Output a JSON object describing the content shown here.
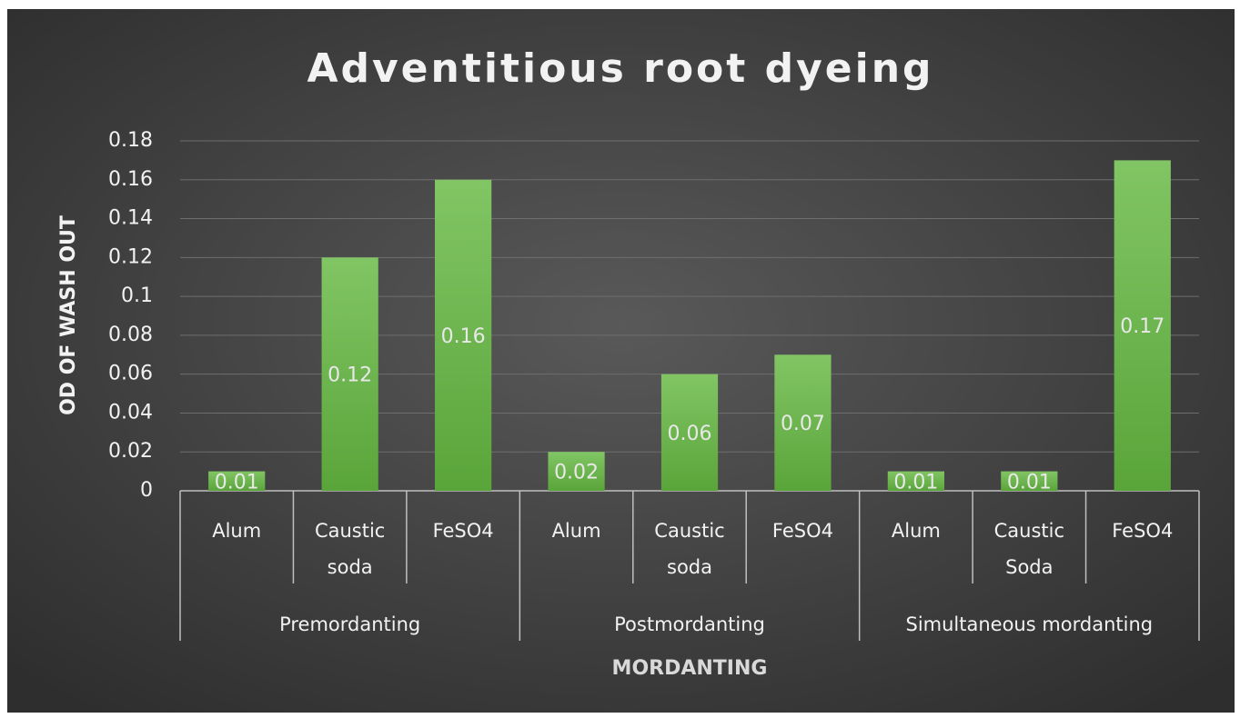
{
  "chart_data": {
    "type": "bar",
    "title": "Adventitious root dyeing",
    "x_label": "MORDANTING",
    "y_label": "OD OF WASH OUT",
    "color": "#6db84a",
    "grid": true,
    "ylim": [
      0,
      0.18
    ],
    "yticks": [
      0,
      0.02,
      0.04,
      0.06,
      0.08,
      0.1,
      0.12,
      0.14,
      0.16,
      0.18
    ],
    "groups": [
      {
        "name": "Premordanting",
        "categories": [
          "Alum",
          "Caustic soda",
          "FeSO4"
        ],
        "values": [
          0.01,
          0.12,
          0.16
        ]
      },
      {
        "name": "Postmordanting",
        "categories": [
          "Alum",
          "Caustic soda",
          "FeSO4"
        ],
        "values": [
          0.02,
          0.06,
          0.07
        ]
      },
      {
        "name": "Simultaneous mordanting",
        "categories": [
          "Alum",
          "Caustic Soda",
          "FeSO4"
        ],
        "values": [
          0.01,
          0.01,
          0.17
        ]
      }
    ]
  }
}
